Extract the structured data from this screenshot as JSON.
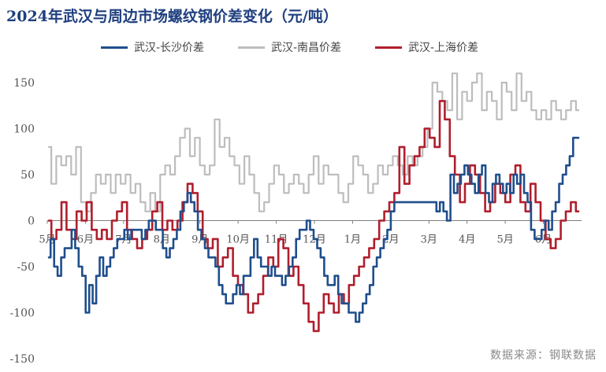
{
  "chart_data": {
    "type": "line",
    "title": "2024年武汉与周边市场螺纹钢价差变化（元/吨）",
    "source": "数据来源：钢联数据",
    "xlabel": "",
    "ylabel": "",
    "ylim": [
      -150,
      150
    ],
    "yticks": [
      -150,
      -100,
      -50,
      0,
      50,
      100,
      150
    ],
    "x_tick_labels": [
      "5月",
      "6月",
      "7月",
      "8月",
      "9月",
      "10月",
      "11月",
      "12月",
      "1月",
      "2月",
      "3月",
      "4月",
      "5月",
      "6月"
    ],
    "legend_position": "top",
    "grid": false,
    "series": [
      {
        "name": "武汉-长沙价差",
        "color": "#1f4e8c",
        "values": [
          -40,
          -20,
          -50,
          -60,
          -40,
          -30,
          -30,
          -10,
          -30,
          -50,
          -60,
          -100,
          -70,
          -90,
          -60,
          -40,
          -60,
          -50,
          -40,
          -30,
          -20,
          -20,
          -10,
          -20,
          -10,
          -10,
          -10,
          -20,
          -10,
          0,
          0,
          -10,
          -10,
          -30,
          -40,
          -30,
          -20,
          -10,
          10,
          20,
          30,
          20,
          10,
          -10,
          -20,
          -30,
          -40,
          -40,
          -50,
          -70,
          -80,
          -90,
          -90,
          -80,
          -70,
          -80,
          -60,
          -60,
          -40,
          -20,
          -40,
          -50,
          -50,
          -60,
          -50,
          -60,
          -60,
          -70,
          -60,
          -50,
          -40,
          -20,
          -10,
          -10,
          0,
          -10,
          -20,
          -30,
          -40,
          -60,
          -70,
          -70,
          -60,
          -80,
          -90,
          -90,
          -100,
          -100,
          -110,
          -100,
          -90,
          -80,
          -70,
          -50,
          -40,
          -30,
          -20,
          -10,
          10,
          20,
          20,
          20,
          20,
          20,
          20,
          20,
          20,
          20,
          20,
          20,
          20,
          10,
          20,
          10,
          0,
          50,
          30,
          40,
          50,
          60,
          50,
          40,
          30,
          50,
          60,
          30,
          20,
          40,
          50,
          40,
          30,
          40,
          30,
          50,
          40,
          50,
          30,
          20,
          -10,
          -20,
          -20,
          -10,
          0,
          -10,
          10,
          20,
          40,
          50,
          60,
          70,
          90,
          90
        ]
      },
      {
        "name": "武汉-南昌价差",
        "color": "#bdbdbd",
        "values": [
          80,
          40,
          70,
          60,
          70,
          50,
          80,
          20,
          10,
          30,
          50,
          40,
          50,
          30,
          50,
          40,
          50,
          30,
          40,
          20,
          10,
          30,
          10,
          50,
          60,
          50,
          70,
          90,
          100,
          70,
          90,
          60,
          50,
          60,
          110,
          80,
          90,
          70,
          60,
          40,
          70,
          50,
          30,
          10,
          20,
          40,
          60,
          50,
          30,
          40,
          50,
          40,
          30,
          50,
          70,
          40,
          60,
          50,
          50,
          30,
          20,
          40,
          70,
          60,
          50,
          30,
          40,
          60,
          50,
          60,
          70,
          60,
          50,
          70,
          60,
          70,
          80,
          100,
          150,
          140,
          130,
          120,
          160,
          110,
          140,
          130,
          150,
          160,
          120,
          140,
          130,
          110,
          150,
          140,
          120,
          160,
          130,
          140,
          120,
          110,
          120,
          110,
          130,
          120,
          110,
          120,
          130,
          120
        ]
      },
      {
        "name": "武汉-上海价差",
        "color": "#b01e2c",
        "values": [
          0,
          -20,
          -10,
          20,
          -10,
          -20,
          10,
          0,
          20,
          -10,
          -20,
          -10,
          -20,
          0,
          10,
          20,
          -10,
          -20,
          -30,
          -20,
          -10,
          10,
          20,
          -10,
          0,
          -10,
          0,
          20,
          40,
          30,
          10,
          -20,
          -30,
          -20,
          -50,
          -40,
          -30,
          -60,
          -70,
          -80,
          -100,
          -90,
          -80,
          -60,
          -40,
          -50,
          -20,
          -30,
          -60,
          -50,
          -70,
          -90,
          -110,
          -120,
          -100,
          -80,
          -90,
          -100,
          -80,
          -90,
          -70,
          -60,
          -50,
          -40,
          -30,
          -20,
          0,
          10,
          20,
          30,
          80,
          40,
          60,
          70,
          80,
          100,
          90,
          80,
          130,
          110,
          70,
          50,
          20,
          40,
          60,
          50,
          30,
          10,
          20,
          40,
          30,
          20,
          50,
          60,
          20,
          10,
          40,
          20,
          0,
          -20,
          -30,
          -20,
          0,
          10,
          20,
          10
        ]
      }
    ]
  }
}
